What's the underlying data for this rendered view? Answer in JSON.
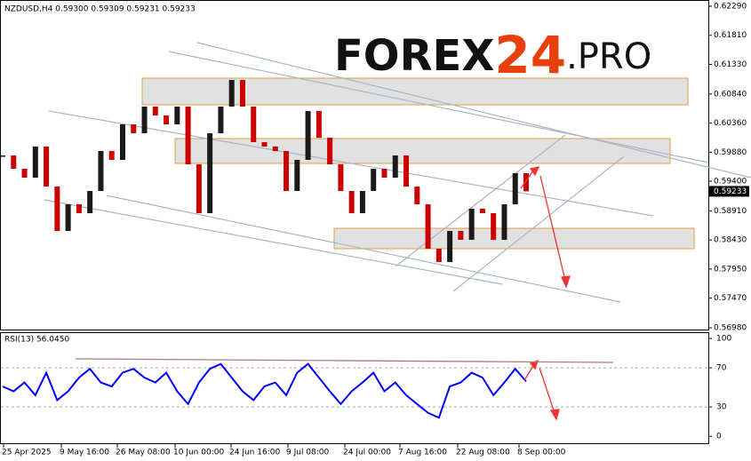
{
  "chart_data": {
    "type": "candlestick",
    "title": "NZDUSD,H4  0.59300 0.59309 0.59231 0.59233",
    "logo": {
      "left": "FOREX",
      "mid": "24",
      "right": ".PRO"
    },
    "last_price_label": "0.59233",
    "x_labels": [
      "25 Apr 2025",
      "9 May 16:00",
      "26 May 08:00",
      "10 Jun 00:00",
      "24 Jun 16:00",
      "9 Jul 08:00",
      "24 Jul 00:00",
      "7 Aug 16:00",
      "22 Aug 08:00",
      "8 Sep 00:00"
    ],
    "values": [
      0.59826,
      0.59606,
      0.59459,
      0.59973,
      0.59312,
      0.58579,
      0.59019,
      0.58872,
      0.59239,
      0.59899,
      0.59753,
      0.60339,
      0.60193,
      0.60633,
      0.60486,
      0.60339,
      0.60633,
      0.59679,
      0.58872,
      0.60193,
      0.60633,
      0.61073,
      0.60633,
      0.60046,
      0.59973,
      0.59899,
      0.59239,
      0.59753,
      0.60559,
      0.60119,
      0.59679,
      0.59239,
      0.58872,
      0.59239,
      0.59606,
      0.59459,
      0.59826,
      0.59312,
      0.59019,
      0.58286,
      0.58066,
      0.58579,
      0.58432,
      0.58946,
      0.58872,
      0.58432,
      0.59019,
      0.59533,
      0.59233
    ],
    "up_color": "#1a1a1a",
    "down_color": "#cc0000",
    "ylim": [
      0.56936,
      0.62393
    ],
    "yticks": [
      {
        "value": 0.6229,
        "label": "0.62290"
      },
      {
        "value": 0.6181,
        "label": "0.61810"
      },
      {
        "value": 0.6133,
        "label": "0.61330"
      },
      {
        "value": 0.6084,
        "label": "0.60840"
      },
      {
        "value": 0.6036,
        "label": "0.60360"
      },
      {
        "value": 0.5988,
        "label": "0.59880"
      },
      {
        "value": 0.594,
        "label": "0.59400"
      },
      {
        "value": 0.5891,
        "label": "0.58910"
      },
      {
        "value": 0.5843,
        "label": "0.58430"
      },
      {
        "value": 0.5795,
        "label": "0.57950"
      },
      {
        "value": 0.5747,
        "label": "0.57470"
      },
      {
        "value": 0.5698,
        "label": "0.56980"
      }
    ],
    "rsi": {
      "label": "RSI(13) 56.0450",
      "color": "#0000ff",
      "values": [
        51,
        46,
        55,
        42,
        65,
        37,
        46,
        60,
        69,
        55,
        51,
        65,
        69,
        60,
        55,
        65,
        46,
        33,
        55,
        69,
        74,
        60,
        46,
        37,
        51,
        55,
        42,
        65,
        74,
        60,
        46,
        33,
        46,
        55,
        65,
        46,
        55,
        42,
        33,
        24,
        19,
        51,
        55,
        65,
        60,
        42,
        55,
        69,
        56
      ],
      "ylim": [
        -8,
        105.5
      ],
      "yticks": [
        100,
        70,
        30,
        0
      ],
      "levels": [
        70,
        30
      ]
    }
  }
}
